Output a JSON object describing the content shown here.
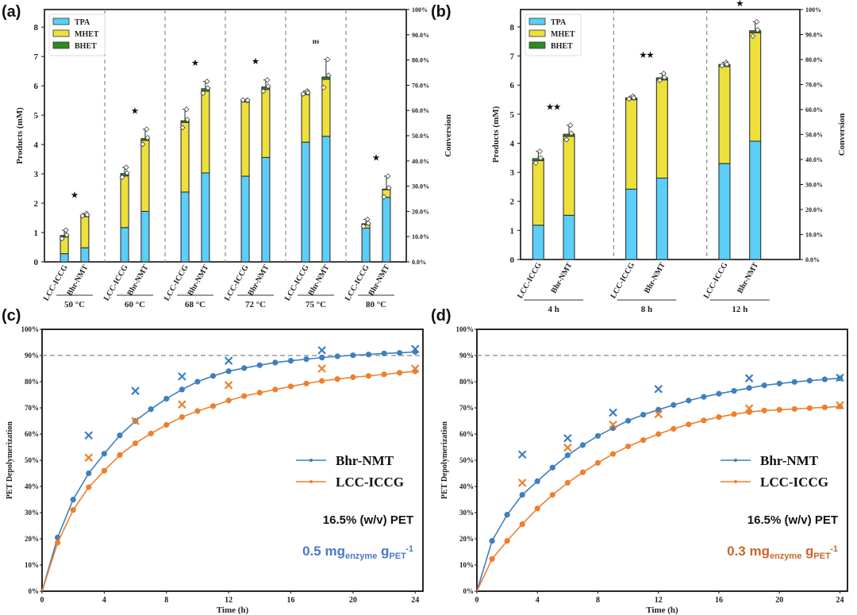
{
  "panels": {
    "a_label": "(a)",
    "b_label": "(b)",
    "c_label": "(c)",
    "d_label": "(d)"
  },
  "colors": {
    "TPA": "#5bcefa",
    "MHET": "#ede03a",
    "BHET": "#2e8b22",
    "bhr": "#3d7fc0",
    "lcc": "#ee7f2d",
    "note_c": "#4a78c8",
    "note_d": "#c8672a"
  },
  "chart_data": [
    {
      "id": "a",
      "type": "bar",
      "stacked": true,
      "title": "",
      "ylabel": "Products (mM)",
      "y2label": "Conversion",
      "ylim": [
        0,
        8.6
      ],
      "yticks": [
        "0",
        "1",
        "2",
        "3",
        "4",
        "5",
        "6",
        "7",
        "8"
      ],
      "y2ticks": [
        "0.0%",
        "10.0%",
        "20.0%",
        "30.0%",
        "40.0%",
        "50.0%",
        "60.0%",
        "70.0%",
        "80.0%",
        "90.0%",
        "100%"
      ],
      "legend": [
        "TPA",
        "MHET",
        "BHET"
      ],
      "legend_position": "top-left",
      "groups": [
        "50 °C",
        "60 °C",
        "68 °C",
        "72 °C",
        "75 °C",
        "80 °C"
      ],
      "categories": [
        "LCC-ICCG",
        "Bhr-NMT"
      ],
      "significance": [
        "★",
        "★",
        "★",
        "★",
        "ns",
        "★"
      ],
      "series": [
        {
          "name": "TPA",
          "values": [
            [
              0.28,
              0.48
            ],
            [
              1.17,
              1.72
            ],
            [
              2.38,
              3.03
            ],
            [
              2.92,
              3.56
            ],
            [
              4.08,
              4.28
            ],
            [
              1.15,
              2.2
            ]
          ]
        },
        {
          "name": "MHET",
          "values": [
            [
              0.57,
              1.06
            ],
            [
              1.76,
              2.42
            ],
            [
              2.37,
              2.79
            ],
            [
              2.53,
              2.32
            ],
            [
              1.62,
              1.94
            ],
            [
              0.12,
              0.26
            ]
          ]
        },
        {
          "name": "BHET",
          "values": [
            [
              0.05,
              0.06
            ],
            [
              0.08,
              0.06
            ],
            [
              0.06,
              0.08
            ],
            [
              0.06,
              0.08
            ],
            [
              0.06,
              0.08
            ],
            [
              0.03,
              0.02
            ]
          ]
        }
      ],
      "error_top": [
        [
          1.08,
          1.65
        ],
        [
          3.22,
          4.52
        ],
        [
          5.2,
          6.15
        ],
        [
          5.5,
          6.2
        ],
        [
          5.82,
          6.9
        ],
        [
          1.45,
          2.92
        ]
      ]
    },
    {
      "id": "b",
      "type": "bar",
      "stacked": true,
      "title": "",
      "ylabel": "Products (mM)",
      "y2label": "Conversion",
      "ylim": [
        0,
        8.6
      ],
      "yticks": [
        "0",
        "1",
        "2",
        "3",
        "4",
        "5",
        "6",
        "7",
        "8"
      ],
      "y2ticks": [
        "0.0%",
        "10.0%",
        "20.0%",
        "30.0%",
        "40.0%",
        "50.0%",
        "60.0%",
        "70.0%",
        "80.0%",
        "90.0%",
        "100%"
      ],
      "legend": [
        "TPA",
        "MHET",
        "BHET"
      ],
      "legend_position": "top-left",
      "groups": [
        "4 h",
        "8 h",
        "12 h"
      ],
      "categories": [
        "LCC-ICCG",
        "Bhr-NMT"
      ],
      "significance": [
        "★★",
        "★★",
        "★"
      ],
      "series": [
        {
          "name": "TPA",
          "values": [
            [
              1.18,
              1.52
            ],
            [
              2.42,
              2.8
            ],
            [
              3.3,
              4.07
            ]
          ]
        },
        {
          "name": "MHET",
          "values": [
            [
              2.22,
              2.72
            ],
            [
              3.08,
              3.38
            ],
            [
              3.34,
              3.73
            ]
          ]
        },
        {
          "name": "BHET",
          "values": [
            [
              0.07,
              0.07
            ],
            [
              0.06,
              0.07
            ],
            [
              0.07,
              0.07
            ]
          ]
        }
      ],
      "error_top": [
        [
          3.72,
          4.62
        ],
        [
          5.62,
          6.4
        ],
        [
          6.78,
          8.18
        ]
      ]
    },
    {
      "id": "c",
      "type": "line",
      "xlabel": "Time (h)",
      "ylabel": "PET Depolymerization",
      "xlim": [
        0,
        24.5
      ],
      "ylim": [
        0,
        100
      ],
      "xticks": [
        0,
        4,
        8,
        12,
        16,
        20,
        24
      ],
      "yticks": [
        "0%",
        "10%",
        "20%",
        "30%",
        "40%",
        "50%",
        "60%",
        "70%",
        "80%",
        "90%",
        "100%"
      ],
      "reference_line": 90,
      "legend_position": "right",
      "x": [
        0,
        1,
        2,
        3,
        4,
        5,
        6,
        7,
        8,
        9,
        10,
        11,
        12,
        13,
        14,
        15,
        16,
        17,
        18,
        19,
        20,
        21,
        22,
        23,
        24
      ],
      "series": [
        {
          "name": "Bhr-NMT",
          "values": [
            0,
            20.5,
            35,
            45,
            52.5,
            59.5,
            65,
            69.5,
            73.5,
            77,
            80,
            82.2,
            84,
            85.2,
            86.3,
            87.3,
            88,
            88.6,
            89.2,
            89.7,
            90.1,
            90.4,
            90.8,
            91,
            91.4
          ],
          "markers_x": [
            3,
            6,
            9,
            12,
            18,
            24
          ],
          "markers_y": [
            59.5,
            76.5,
            82,
            88,
            92,
            92.5
          ]
        },
        {
          "name": "LCC-ICCG",
          "values": [
            0,
            18.5,
            31,
            39.7,
            46,
            52,
            56.5,
            60.2,
            63.5,
            66.5,
            68.8,
            70.7,
            72.8,
            74.5,
            75.8,
            77,
            78.2,
            79.3,
            80.3,
            81,
            81.7,
            82.2,
            82.8,
            83.4,
            84
          ],
          "markers_x": [
            3,
            6,
            9,
            12,
            18,
            24
          ],
          "markers_y": [
            51,
            65,
            71.3,
            78.7,
            85,
            85
          ]
        }
      ],
      "annotations": [
        "16.5% (w/v) PET",
        "0.5 mg",
        "enzyme",
        " g",
        "PET",
        "-1"
      ]
    },
    {
      "id": "d",
      "type": "line",
      "xlabel": "Time (h)",
      "ylabel": "PET Depolymerization",
      "xlim": [
        0,
        24.5
      ],
      "ylim": [
        0,
        100
      ],
      "xticks": [
        0,
        4,
        8,
        12,
        16,
        20,
        24
      ],
      "yticks": [
        "0%",
        "10%",
        "20%",
        "30%",
        "40%",
        "50%",
        "60%",
        "70%",
        "80%",
        "90%",
        "100%"
      ],
      "reference_line": 90,
      "legend_position": "right",
      "x": [
        0,
        1,
        2,
        3,
        4,
        5,
        6,
        7,
        8,
        9,
        10,
        11,
        12,
        13,
        14,
        15,
        16,
        17,
        18,
        19,
        20,
        21,
        22,
        23,
        24
      ],
      "series": [
        {
          "name": "Bhr-NMT",
          "values": [
            0,
            19.2,
            29.2,
            36.8,
            42,
            47.2,
            51.9,
            55.8,
            59.3,
            62.3,
            65.1,
            67.4,
            69.3,
            71.1,
            72.8,
            74.2,
            75.4,
            76.5,
            77.6,
            78.6,
            79.3,
            79.9,
            80.4,
            80.9,
            81.3
          ],
          "markers_x": [
            3,
            6,
            9,
            12,
            18,
            24
          ],
          "markers_y": [
            52.2,
            58.4,
            68.2,
            77.2,
            81.3,
            81.5
          ]
        },
        {
          "name": "LCC-ICCG",
          "values": [
            0,
            12.3,
            19.2,
            25.6,
            31.6,
            36.8,
            41.4,
            45.4,
            49,
            52.4,
            55.3,
            57.7,
            60,
            62,
            63.7,
            65.2,
            66.5,
            67.6,
            68.4,
            69,
            69.3,
            69.6,
            69.9,
            70.2,
            70.5
          ],
          "markers_x": [
            3,
            6,
            9,
            12,
            18,
            24
          ],
          "markers_y": [
            41.4,
            54.8,
            63.6,
            67.6,
            69.8,
            71
          ]
        }
      ],
      "annotations": [
        "16.5% (w/v) PET",
        "0.3 mg",
        "enzyme",
        " g",
        "PET",
        "-1"
      ]
    }
  ]
}
